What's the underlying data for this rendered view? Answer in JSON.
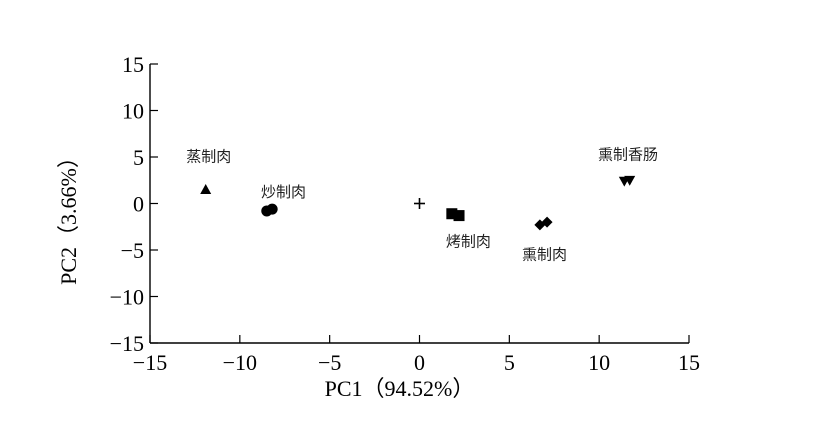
{
  "chart_data": {
    "type": "scatter",
    "xlabel": "PC1（94.52%）",
    "ylabel": "PC2（3.66%）",
    "xlim": [
      -15,
      15
    ],
    "ylim": [
      -15,
      15
    ],
    "xticks": [
      -15,
      -10,
      -5,
      0,
      5,
      10,
      15
    ],
    "yticks": [
      -15,
      -10,
      -5,
      0,
      5,
      10,
      15
    ],
    "xtick_labels": [
      "−15",
      "−10",
      "−5",
      "0",
      "5",
      "10",
      "15"
    ],
    "ytick_labels": [
      "−15",
      "−10",
      "−5",
      "0",
      "5",
      "10",
      "15"
    ],
    "grid": false,
    "groups": [
      {
        "label": "蒸制肉",
        "marker": "triangle-up",
        "points": [
          {
            "x": -11.9,
            "y": 1.5
          }
        ]
      },
      {
        "label": "炒制肉",
        "marker": "circle",
        "points": [
          {
            "x": -8.5,
            "y": -0.8
          },
          {
            "x": -8.2,
            "y": -0.6
          }
        ]
      },
      {
        "label": "",
        "marker": "plus",
        "points": [
          {
            "x": 0,
            "y": 0
          }
        ]
      },
      {
        "label": "烤制肉",
        "marker": "square",
        "points": [
          {
            "x": 1.8,
            "y": -1.1
          },
          {
            "x": 2.2,
            "y": -1.3
          }
        ]
      },
      {
        "label": "熏制肉",
        "marker": "diamond",
        "points": [
          {
            "x": 6.7,
            "y": -2.3
          },
          {
            "x": 7.1,
            "y": -2.0
          }
        ]
      },
      {
        "label": "熏制香肠",
        "marker": "triangle-down",
        "points": [
          {
            "x": 11.4,
            "y": 2.4
          },
          {
            "x": 11.7,
            "y": 2.5
          }
        ]
      }
    ]
  }
}
